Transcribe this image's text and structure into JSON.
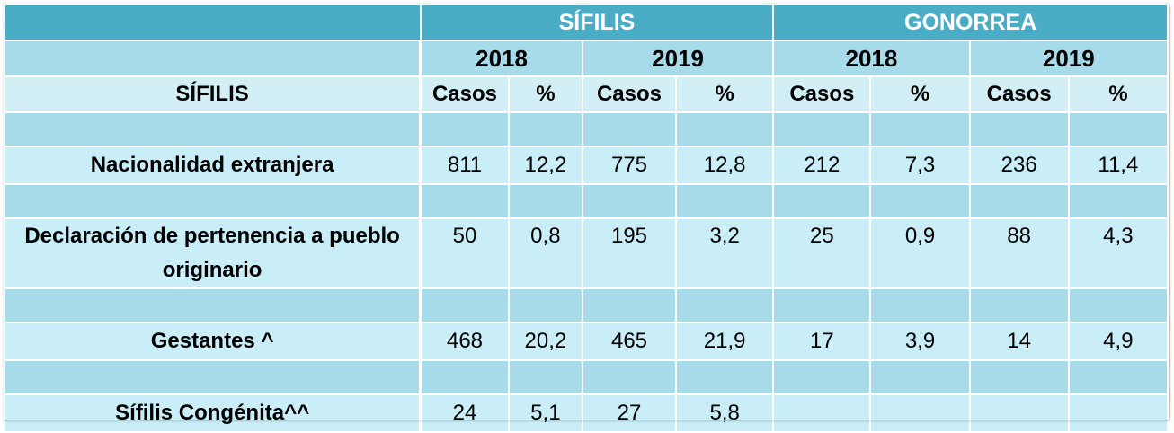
{
  "header": {
    "group_sifilis": "SÍFILIS",
    "group_gonorrea": "GONORREA",
    "years": [
      "2018",
      "2019",
      "2018",
      "2019"
    ],
    "row_label": "SÍFILIS",
    "sub_cols": [
      "Casos",
      "%",
      "Casos",
      "%",
      "Casos",
      "%",
      "Casos",
      "%"
    ]
  },
  "rows": [
    {
      "label": "Nacionalidad extranjera",
      "values": [
        "811",
        "12,2",
        "775",
        "12,8",
        "212",
        "7,3",
        "236",
        "11,4"
      ]
    },
    {
      "label": "Declaración de pertenencia a pueblo originario",
      "values": [
        "50",
        "0,8",
        "195",
        "3,2",
        "25",
        "0,9",
        "88",
        "4,3"
      ]
    },
    {
      "label": "Gestantes ^",
      "values": [
        "468",
        "20,2",
        "465",
        "21,9",
        "17",
        "3,9",
        "14",
        "4,9"
      ]
    },
    {
      "label": "Sífilis Congénita^^",
      "values": [
        "24",
        "5,1",
        "27",
        "5,8",
        "",
        "",
        "",
        ""
      ]
    }
  ]
}
